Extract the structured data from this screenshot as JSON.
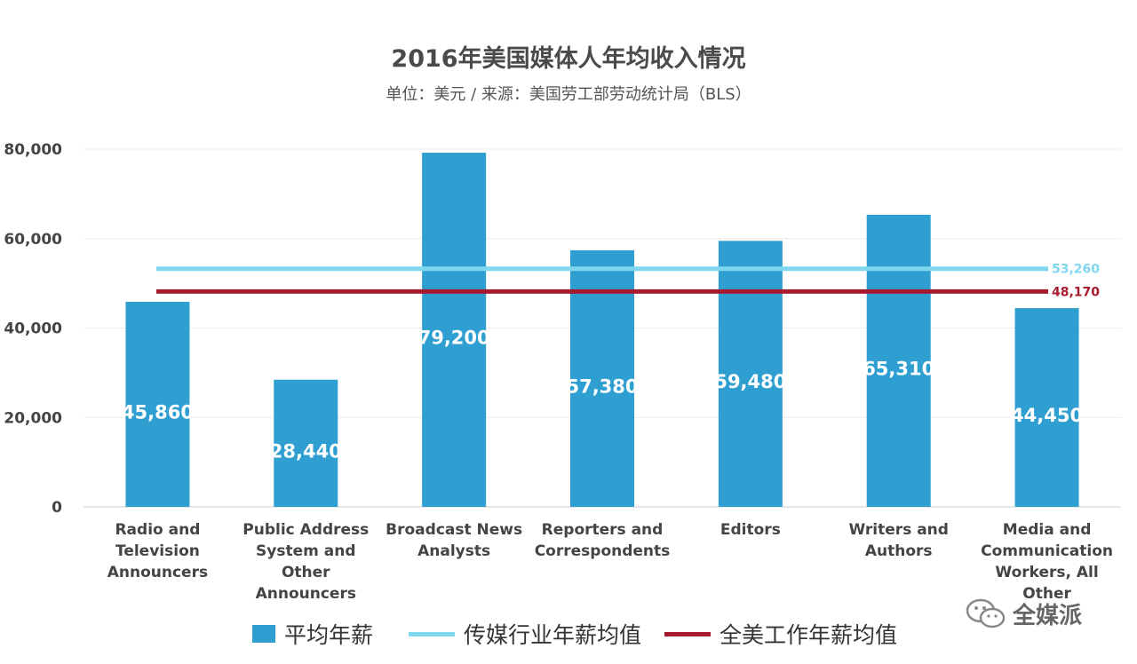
{
  "chart_data": {
    "type": "bar",
    "title": "2016年美国媒体人年均收入情况",
    "subtitle": "单位：美元 / 来源：美国劳工部劳动统计局（BLS）",
    "categories": [
      "Radio and Television Announcers",
      "Public Address System and Other Announcers",
      "Broadcast News Analysts",
      "Reporters and Correspondents",
      "Editors",
      "Writers and Authors",
      "Media and Communication Workers, All Other"
    ],
    "category_lines": [
      [
        "Radio and",
        "Television",
        "Announcers"
      ],
      [
        "Public Address",
        "System and",
        "Other",
        "Announcers"
      ],
      [
        "Broadcast News",
        "Analysts"
      ],
      [
        "Reporters and",
        "Correspondents"
      ],
      [
        "Editors"
      ],
      [
        "Writers and",
        "Authors"
      ],
      [
        "Media and",
        "Communication",
        "Workers, All",
        "Other"
      ]
    ],
    "series": [
      {
        "name": "平均年薪",
        "color": "#2E9FD0",
        "values": [
          45860,
          28440,
          79200,
          57380,
          59480,
          65310,
          44450
        ],
        "value_labels": [
          "45,860",
          "28,440",
          "79,200",
          "57,380",
          "59,480",
          "65,310",
          "44,450"
        ]
      }
    ],
    "reference_lines": [
      {
        "name": "传媒行业年薪均值",
        "value": 53260,
        "label": "53,260",
        "color": "#7FD8F0"
      },
      {
        "name": "全美工作年薪均值",
        "value": 48170,
        "label": "48,170",
        "color": "#A6192E"
      }
    ],
    "ylim": [
      0,
      80000
    ],
    "yticks": [
      0,
      20000,
      40000,
      60000,
      80000
    ],
    "ytick_labels": [
      "0",
      "20,000",
      "40,000",
      "60,000",
      "80,000"
    ],
    "grid": true,
    "legend_position": "bottom"
  },
  "watermark": {
    "text": "全媒派",
    "icon": "wechat-icon"
  }
}
